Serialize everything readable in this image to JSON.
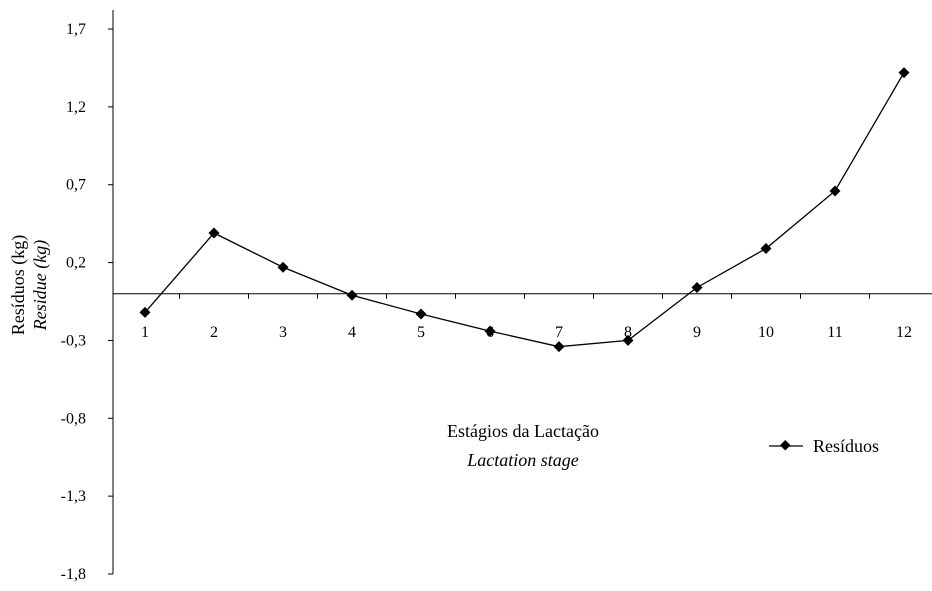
{
  "chart_data": {
    "type": "line",
    "title": "",
    "xlabel": "Estágios da Lactação",
    "xlabel_en": "Lactation stage",
    "ylabel": "Resíduos (kg)",
    "ylabel_en": "Residue (kg)",
    "ylim": [
      -1.8,
      1.8
    ],
    "yticks": [
      "1,7",
      "1,2",
      "0,7",
      "0,2",
      "-0,3",
      "-0,8",
      "-1,3",
      "-1,8"
    ],
    "ytick_values": [
      1.7,
      1.2,
      0.7,
      0.2,
      -0.3,
      -0.8,
      -1.3,
      -1.8
    ],
    "categories": [
      "1",
      "2",
      "3",
      "4",
      "5",
      "6",
      "7",
      "8",
      "9",
      "10",
      "11",
      "12"
    ],
    "series": [
      {
        "name": "Resíduos",
        "values": [
          -0.12,
          0.39,
          0.17,
          -0.01,
          -0.13,
          -0.24,
          -0.34,
          -0.3,
          0.04,
          0.29,
          0.66,
          1.42
        ],
        "color": "#000000",
        "marker": "diamond"
      }
    ],
    "grid": false,
    "legend": "right"
  }
}
